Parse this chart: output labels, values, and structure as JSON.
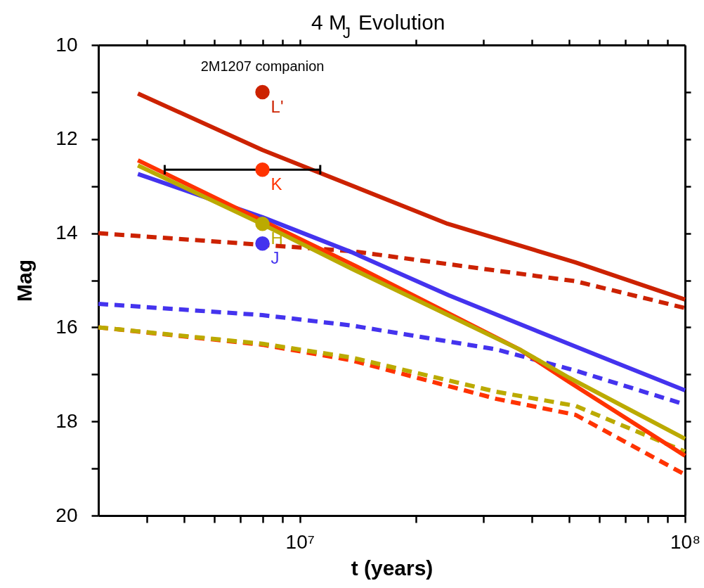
{
  "chart_data": {
    "type": "line",
    "title": "4 M$_{J}$ Evolution",
    "xlabel": "t (years)",
    "ylabel": "Mag",
    "log": "x",
    "grid": false,
    "xlim": [
      3000000,
      100000000
    ],
    "xticks": [
      {
        "value": 4000000,
        "label": null
      },
      {
        "value": 5000000,
        "label": null
      },
      {
        "value": 6000000,
        "label": null
      },
      {
        "value": 7000000,
        "label": null
      },
      {
        "value": 8000000,
        "label": null
      },
      {
        "value": 9000000,
        "label": null
      },
      {
        "value": 10000000,
        "label": "10⁷"
      },
      {
        "value": 20000000,
        "label": null
      },
      {
        "value": 30000000,
        "label": null
      },
      {
        "value": 40000000,
        "label": null
      },
      {
        "value": 50000000,
        "label": null
      },
      {
        "value": 60000000,
        "label": null
      },
      {
        "value": 70000000,
        "label": null
      },
      {
        "value": 80000000,
        "label": null
      },
      {
        "value": 90000000,
        "label": null
      },
      {
        "value": 100000000,
        "label": "10⁸"
      }
    ],
    "ylim": [
      20,
      10
    ],
    "yticks": [
      10,
      {
        "value": 11,
        "label": null
      },
      12,
      {
        "value": 13,
        "label": null
      },
      14,
      {
        "value": 15,
        "label": null
      },
      16,
      {
        "value": 17,
        "label": null
      },
      18,
      {
        "value": 19,
        "label": null
      },
      20
    ],
    "annotations": [
      "2M1207 companion"
    ],
    "series": [
      {
        "line_style": "dashed",
        "color": "#ff3300",
        "x": [
          3000000,
          8000000,
          13600000,
          32400000,
          52000000,
          100000000
        ],
        "values": [
          16.0,
          16.37,
          16.7,
          17.52,
          17.86,
          19.13
        ]
      },
      {
        "line_style": "dashed",
        "color": "#bbaa00",
        "x": [
          3000000,
          8000000,
          13600000,
          32400000,
          52000000,
          100000000
        ],
        "values": [
          16.0,
          16.35,
          16.64,
          17.37,
          17.67,
          18.64
        ]
      },
      {
        "line_style": "dashed",
        "color": "#4433ee",
        "x": [
          3000000,
          8000000,
          13600000,
          32400000,
          52000000,
          100000000
        ],
        "values": [
          15.5,
          15.74,
          15.96,
          16.47,
          16.92,
          17.64
        ]
      },
      {
        "line_style": "dashed",
        "color": "#cc2200",
        "x": [
          3000000,
          13600000,
          52000000,
          100000000
        ],
        "values": [
          14.0,
          14.38,
          15.02,
          15.59
        ]
      },
      {
        "line_style": "solid",
        "color": "#4433ee",
        "x": [
          3800000,
          8000000,
          13600000,
          24400000,
          52000000,
          100000000
        ],
        "values": [
          12.74,
          13.66,
          14.4,
          15.32,
          16.41,
          17.34
        ]
      },
      {
        "line_style": "solid",
        "color": "#ff3300",
        "x": [
          3800000,
          13600000,
          37200000,
          50000000,
          100000000
        ],
        "values": [
          12.45,
          14.65,
          16.47,
          17.16,
          18.73
        ]
      },
      {
        "line_style": "solid",
        "color": "#bbaa00",
        "x": [
          3800000,
          8000000,
          13600000,
          37200000,
          50000000,
          100000000
        ],
        "values": [
          12.56,
          13.81,
          14.75,
          16.47,
          17.07,
          18.37
        ]
      },
      {
        "line_style": "solid",
        "color": "#cc2200",
        "x": [
          3800000,
          8000000,
          24200000,
          52000000,
          100000000
        ],
        "values": [
          11.03,
          12.23,
          13.8,
          14.62,
          15.41
        ]
      },
      {
        "type": "scatter",
        "marker": "circle",
        "name": "L'",
        "color": "#cc2200",
        "x": [
          8000000
        ],
        "values": [
          11.0
        ]
      },
      {
        "type": "scatter",
        "marker": "circle",
        "name": "K",
        "color": "#ff3300",
        "x": [
          8000000
        ],
        "values": [
          12.65
        ],
        "xerrors": [
          [
            4460000,
            11300000
          ]
        ]
      },
      {
        "type": "scatter",
        "marker": "circle",
        "name": "H",
        "color": "#bbaa00",
        "x": [
          8000000
        ],
        "values": [
          13.8
        ]
      },
      {
        "type": "scatter",
        "marker": "circle",
        "name": "J",
        "color": "#4433ee",
        "x": [
          8000000
        ],
        "values": [
          14.22
        ]
      }
    ]
  }
}
